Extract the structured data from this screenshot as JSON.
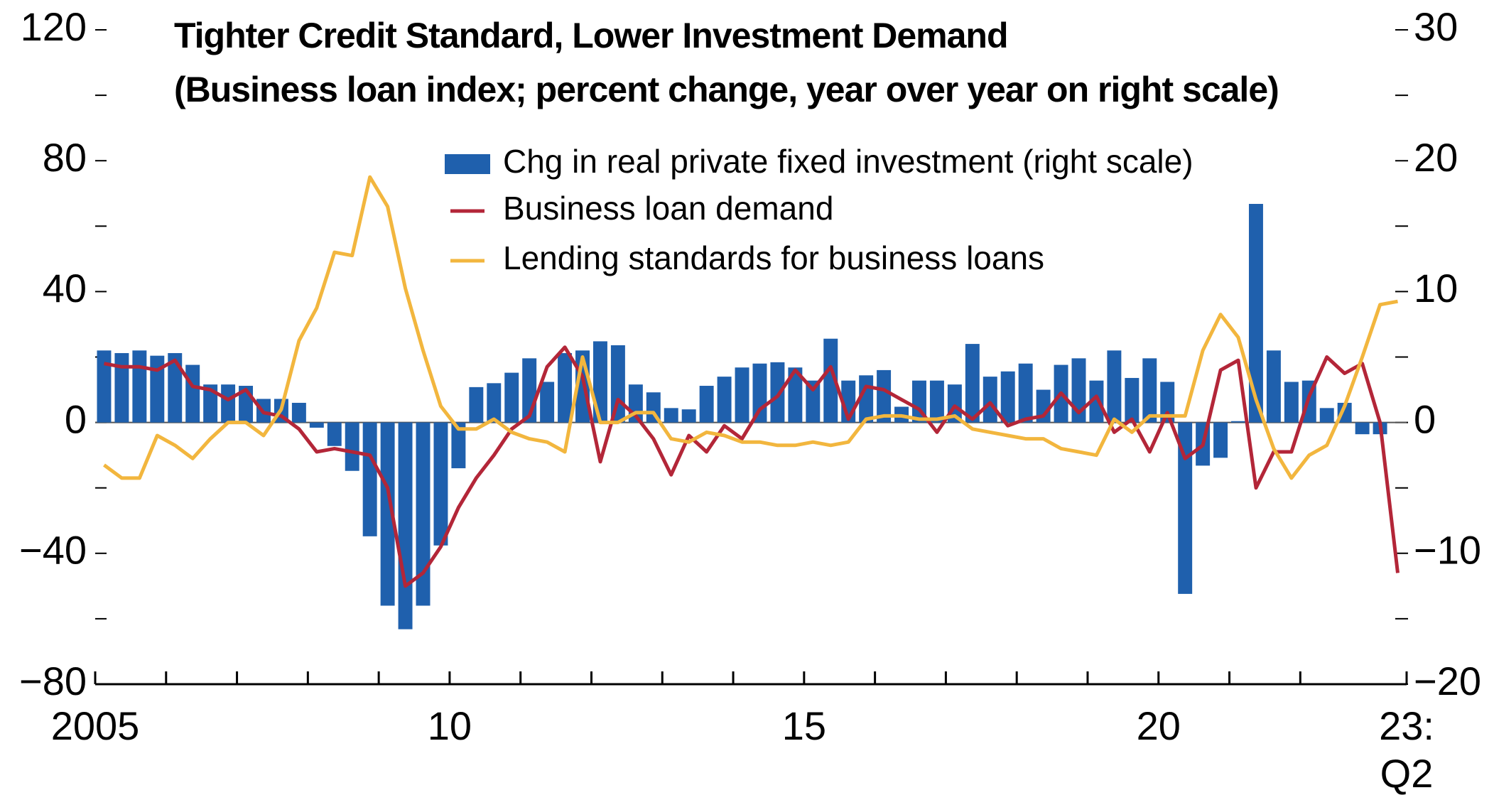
{
  "chart_data": {
    "type": "bar-line",
    "title": "Tighter Credit Standard, Lower Investment Demand",
    "subtitle": "(Business loan index; percent change, year over year on right scale)",
    "x": [
      2005,
      2005.25,
      2005.5,
      2005.75,
      2006,
      2006.25,
      2006.5,
      2006.75,
      2007,
      2007.25,
      2007.5,
      2007.75,
      2008,
      2008.25,
      2008.5,
      2008.75,
      2009,
      2009.25,
      2009.5,
      2009.75,
      2010,
      2010.25,
      2010.5,
      2010.75,
      2011,
      2011.25,
      2011.5,
      2011.75,
      2012,
      2012.25,
      2012.5,
      2012.75,
      2013,
      2013.25,
      2013.5,
      2013.75,
      2014,
      2014.25,
      2014.5,
      2014.75,
      2015,
      2015.25,
      2015.5,
      2015.75,
      2016,
      2016.25,
      2016.5,
      2016.75,
      2017,
      2017.25,
      2017.5,
      2017.75,
      2018,
      2018.25,
      2018.5,
      2018.75,
      2019,
      2019.25,
      2019.5,
      2019.75,
      2020,
      2020.25,
      2020.5,
      2020.75,
      2021,
      2021.25,
      2021.5,
      2021.75,
      2022,
      2022.25,
      2022.5,
      2022.75,
      2023,
      2023.25
    ],
    "series": [
      {
        "name": "Chg in real private fixed investment (right scale)",
        "type": "bar",
        "axis": "y2",
        "color": "#1f60ad",
        "values": [
          5.5,
          5.3,
          5.5,
          5.1,
          5.3,
          4.4,
          2.9,
          2.9,
          2.8,
          1.8,
          1.8,
          1.5,
          -0.4,
          -1.8,
          -3.7,
          -8.7,
          -14.0,
          -15.8,
          -14.0,
          -9.4,
          -3.5,
          2.7,
          3.0,
          3.8,
          4.9,
          3.1,
          5.3,
          5.5,
          6.2,
          5.9,
          2.9,
          2.3,
          1.1,
          1.0,
          2.8,
          3.5,
          4.2,
          4.5,
          4.6,
          4.2,
          3.2,
          6.4,
          3.2,
          3.6,
          4.0,
          1.2,
          3.2,
          3.2,
          2.9,
          6.0,
          3.5,
          3.9,
          4.5,
          2.5,
          4.4,
          4.9,
          3.2,
          5.5,
          3.4,
          4.9,
          3.1,
          -13.1,
          -3.3,
          -2.7,
          0.1,
          16.7,
          5.5,
          3.1,
          3.2,
          1.1,
          1.5,
          -0.9,
          -0.9,
          null
        ]
      },
      {
        "name": "Business loan demand",
        "type": "line",
        "color": "#b32638",
        "values": [
          18,
          17,
          17,
          16,
          19,
          11,
          10,
          7,
          10,
          3,
          2,
          -2,
          -9,
          -8,
          -9,
          -10,
          -20,
          -50,
          -46,
          -38,
          -26,
          -17,
          -10,
          -2,
          2,
          17,
          23,
          14,
          -12,
          7,
          2,
          -5,
          -16,
          -4,
          -9,
          -1,
          -5,
          4,
          8,
          16,
          10,
          17,
          1,
          11,
          10,
          7,
          4,
          -3,
          5,
          1,
          6,
          -1,
          1,
          2,
          9,
          3,
          8,
          -3,
          1,
          -9,
          3,
          -11,
          -7,
          16,
          19,
          -20,
          -9,
          -9,
          8,
          20,
          15,
          18,
          0,
          -46
        ]
      },
      {
        "name": "Lending standards for business loans",
        "type": "line",
        "color": "#f2b63e",
        "values": [
          -13,
          -17,
          -17,
          -4,
          -7,
          -11,
          -5,
          0,
          0,
          -4,
          4,
          25,
          35,
          52,
          51,
          75,
          66,
          41,
          22,
          5,
          -2,
          -2,
          1,
          -3,
          -5,
          -6,
          -9,
          20,
          0,
          0,
          3,
          3,
          -5,
          -6,
          -3,
          -4,
          -6,
          -6,
          -7,
          -7,
          -6,
          -7,
          -6,
          1,
          2,
          2,
          1,
          1,
          2,
          -2,
          -3,
          -4,
          -5,
          -5,
          -8,
          -9,
          -10,
          1,
          -3,
          2,
          2,
          2,
          22,
          33,
          26,
          7,
          -8,
          -17,
          -10,
          -7,
          5,
          20,
          36,
          37
        ]
      }
    ],
    "xlim": [
      2005,
      2023.5
    ],
    "xticks": [
      {
        "value": 2005,
        "label": "2005"
      },
      {
        "value": 2010,
        "label": "10"
      },
      {
        "value": 2015,
        "label": "15"
      },
      {
        "value": 2020,
        "label": "20"
      },
      {
        "value": 2023.5,
        "label": "23:\nQ2"
      }
    ],
    "xminorticks": [
      2006,
      2007,
      2008,
      2009,
      2011,
      2012,
      2013,
      2014,
      2016,
      2017,
      2018,
      2019,
      2021,
      2022
    ],
    "ylim": [
      -80,
      120
    ],
    "yticks": [
      {
        "value": -80,
        "label": "−80"
      },
      {
        "value": -40,
        "label": "−40"
      },
      0,
      40,
      80,
      120
    ],
    "yminorticks": [
      -60,
      -20,
      20,
      60,
      100
    ],
    "y2lim": [
      -20,
      30
    ],
    "y2ticks": [
      {
        "value": -20,
        "label": "−20"
      },
      {
        "value": -10,
        "label": "−10"
      },
      0,
      10,
      20,
      30
    ],
    "y2minorticks": [
      -15,
      -5,
      5,
      15,
      25
    ]
  }
}
